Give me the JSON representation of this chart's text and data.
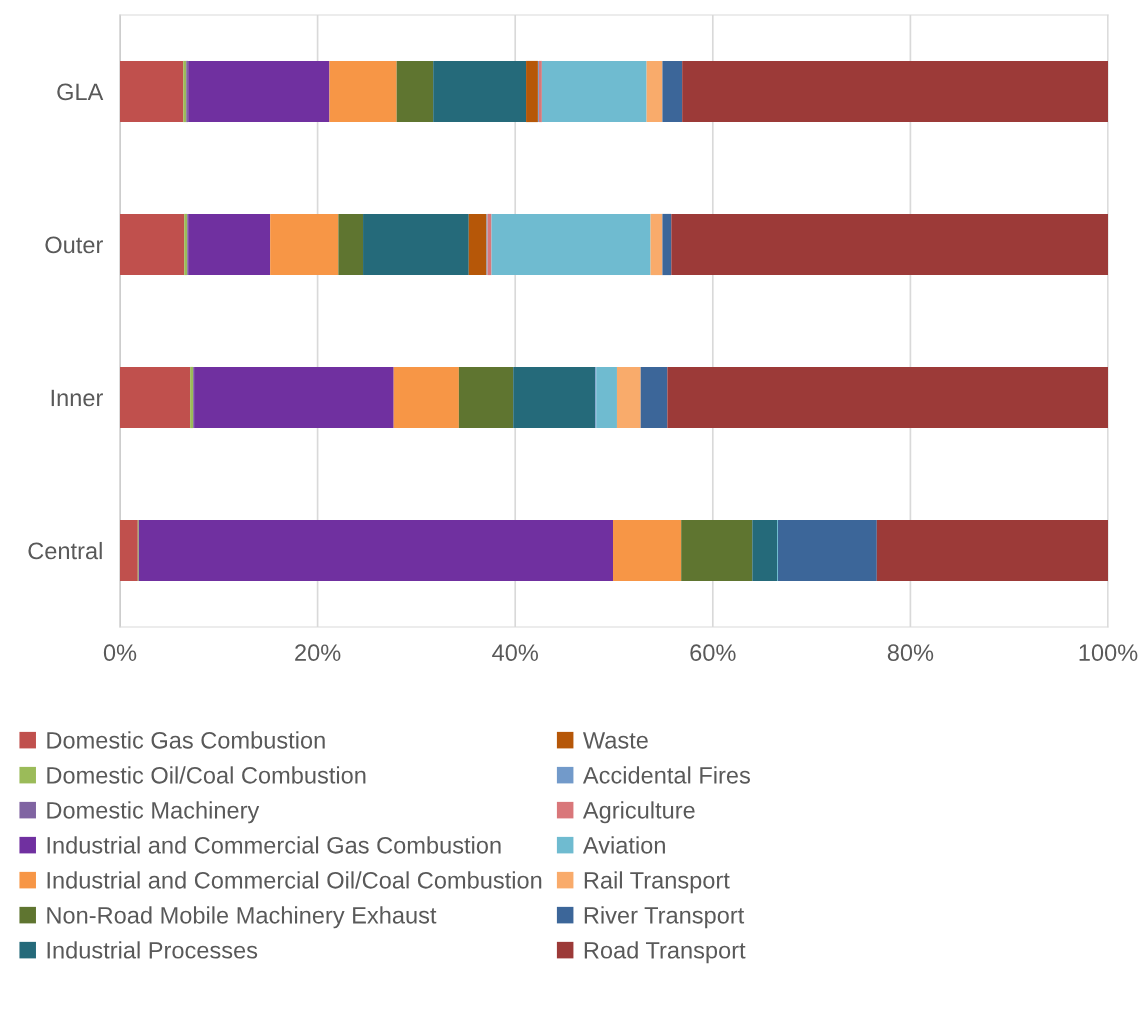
{
  "chart_data": {
    "type": "bar",
    "orientation": "horizontal",
    "stacked": true,
    "categories": [
      "GLA",
      "Outer",
      "Inner",
      "Central"
    ],
    "series": [
      {
        "name": "Domestic Gas Combustion",
        "color": "#c0504d",
        "values": [
          6.4,
          6.5,
          7.1,
          1.8
        ]
      },
      {
        "name": "Domestic Oil/Coal Combustion",
        "color": "#9bbb59",
        "values": [
          0.3,
          0.3,
          0.3,
          0.1
        ]
      },
      {
        "name": "Domestic Machinery",
        "color": "#8064a2",
        "values": [
          0.2,
          0.1,
          0.1,
          0
        ]
      },
      {
        "name": "Industrial and Commercial Gas Combustion",
        "color": "#7030a0",
        "values": [
          14.3,
          8.3,
          20.2,
          48.0
        ]
      },
      {
        "name": "Industrial and Commercial Oil/Coal Combustion",
        "color": "#f79646",
        "values": [
          6.8,
          6.9,
          6.6,
          6.9
        ]
      },
      {
        "name": "Non-Road Mobile Machinery Exhaust",
        "color": "#5f7530",
        "values": [
          3.7,
          2.5,
          5.5,
          7.2
        ]
      },
      {
        "name": "Industrial Processes",
        "color": "#256a7a",
        "values": [
          9.4,
          10.7,
          8.3,
          2.5
        ]
      },
      {
        "name": "Waste",
        "color": "#b65708",
        "values": [
          1.2,
          1.8,
          0,
          0
        ]
      },
      {
        "name": "Accidental Fires",
        "color": "#729aca",
        "values": [
          0.1,
          0.1,
          0.1,
          0
        ]
      },
      {
        "name": "Agriculture",
        "color": "#d9777a",
        "values": [
          0.3,
          0.4,
          0,
          0
        ]
      },
      {
        "name": "Aviation",
        "color": "#6fbbd0",
        "values": [
          10.6,
          16.1,
          2.1,
          0.1
        ]
      },
      {
        "name": "Rail Transport",
        "color": "#f9ab6b",
        "values": [
          1.6,
          1.2,
          2.4,
          0
        ]
      },
      {
        "name": "River Transport",
        "color": "#3c6699",
        "values": [
          2.0,
          0.9,
          2.7,
          10.0
        ]
      },
      {
        "name": "Road Transport",
        "color": "#9c3a38",
        "values": [
          43.1,
          44.2,
          44.6,
          23.4
        ]
      }
    ],
    "xlim": [
      0,
      100
    ],
    "xticks": [
      {
        "value": 0,
        "label": "0%"
      },
      {
        "value": 20,
        "label": "20%"
      },
      {
        "value": 40,
        "label": "40%"
      },
      {
        "value": 60,
        "label": "60%"
      },
      {
        "value": 80,
        "label": "80%"
      },
      {
        "value": 100,
        "label": "100%"
      }
    ],
    "grid": "x",
    "legend": "bottom"
  }
}
